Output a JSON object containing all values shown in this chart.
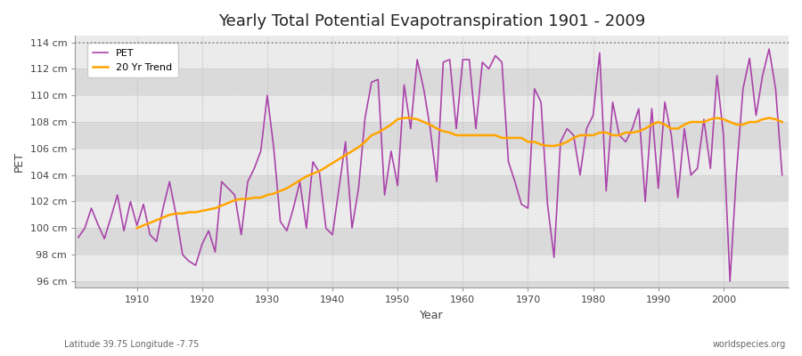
{
  "title": "Yearly Total Potential Evapotranspiration 1901 - 2009",
  "xlabel": "Year",
  "ylabel": "PET",
  "subtitle_left": "Latitude 39.75 Longitude -7.75",
  "subtitle_right": "worldspecies.org",
  "ylim": [
    95.5,
    114.5
  ],
  "xlim": [
    1900.5,
    2010
  ],
  "ytick_labels": [
    "96 cm",
    "98 cm",
    "100 cm",
    "102 cm",
    "104 cm",
    "106 cm",
    "108 cm",
    "110 cm",
    "112 cm",
    "114 cm"
  ],
  "ytick_values": [
    96,
    98,
    100,
    102,
    104,
    106,
    108,
    110,
    112,
    114
  ],
  "xtick_values": [
    1910,
    1920,
    1930,
    1940,
    1950,
    1960,
    1970,
    1980,
    1990,
    2000
  ],
  "pet_color": "#AA44AA",
  "trend_color": "#FFA500",
  "background_color": "#FFFFFF",
  "plot_bg_light": "#EBEBEB",
  "plot_bg_dark": "#DADADA",
  "grid_color": "#FFFFFF",
  "hline_value": 114,
  "pet_years": [
    1901,
    1902,
    1903,
    1904,
    1905,
    1906,
    1907,
    1908,
    1909,
    1910,
    1911,
    1912,
    1913,
    1914,
    1915,
    1916,
    1917,
    1918,
    1919,
    1920,
    1921,
    1922,
    1923,
    1924,
    1925,
    1926,
    1927,
    1928,
    1929,
    1930,
    1931,
    1932,
    1933,
    1934,
    1935,
    1936,
    1937,
    1938,
    1939,
    1940,
    1941,
    1942,
    1943,
    1944,
    1945,
    1946,
    1947,
    1948,
    1949,
    1950,
    1951,
    1952,
    1953,
    1954,
    1955,
    1956,
    1957,
    1958,
    1959,
    1960,
    1961,
    1962,
    1963,
    1964,
    1965,
    1966,
    1967,
    1968,
    1969,
    1970,
    1971,
    1972,
    1973,
    1974,
    1975,
    1976,
    1977,
    1978,
    1979,
    1980,
    1981,
    1982,
    1983,
    1984,
    1985,
    1986,
    1987,
    1988,
    1989,
    1990,
    1991,
    1992,
    1993,
    1994,
    1995,
    1996,
    1997,
    1998,
    1999,
    2000,
    2001,
    2002,
    2003,
    2004,
    2005,
    2006,
    2007,
    2008,
    2009
  ],
  "pet_values": [
    99.3,
    100.0,
    101.5,
    100.3,
    99.2,
    100.8,
    102.5,
    99.8,
    102.0,
    100.2,
    101.8,
    99.5,
    99.0,
    101.5,
    103.5,
    101.0,
    98.0,
    97.5,
    97.2,
    98.8,
    99.8,
    98.2,
    103.5,
    103.0,
    102.5,
    99.5,
    103.5,
    104.5,
    105.8,
    110.0,
    106.0,
    100.5,
    99.8,
    101.5,
    103.5,
    100.0,
    105.0,
    104.2,
    100.0,
    99.5,
    103.0,
    106.5,
    100.0,
    103.0,
    108.3,
    111.0,
    111.2,
    102.5,
    105.8,
    103.2,
    110.8,
    107.5,
    112.7,
    110.5,
    107.5,
    103.5,
    112.5,
    112.7,
    107.5,
    112.7,
    112.7,
    107.5,
    112.5,
    112.0,
    113.0,
    112.5,
    105.0,
    103.5,
    101.8,
    101.5,
    110.5,
    109.5,
    101.8,
    97.8,
    106.5,
    107.5,
    107.0,
    104.0,
    107.5,
    108.5,
    113.2,
    102.8,
    109.5,
    107.0,
    106.5,
    107.5,
    109.0,
    102.0,
    109.0,
    103.0,
    109.5,
    107.0,
    102.3,
    107.5,
    104.0,
    104.5,
    108.2,
    104.5,
    111.5,
    107.0,
    96.0,
    104.2,
    110.5,
    112.8,
    108.5,
    111.5,
    113.5,
    110.5,
    104.0
  ],
  "trend_years": [
    1910,
    1911,
    1912,
    1913,
    1914,
    1915,
    1916,
    1917,
    1918,
    1919,
    1920,
    1921,
    1922,
    1923,
    1924,
    1925,
    1926,
    1927,
    1928,
    1929,
    1930,
    1931,
    1932,
    1933,
    1934,
    1935,
    1936,
    1937,
    1938,
    1939,
    1940,
    1941,
    1942,
    1943,
    1944,
    1945,
    1946,
    1947,
    1948,
    1949,
    1950,
    1951,
    1952,
    1953,
    1954,
    1955,
    1956,
    1957,
    1958,
    1959,
    1960,
    1961,
    1962,
    1963,
    1964,
    1965,
    1966,
    1967,
    1968,
    1969,
    1970,
    1971,
    1972,
    1973,
    1974,
    1975,
    1976,
    1977,
    1978,
    1979,
    1980,
    1981,
    1982,
    1983,
    1984,
    1985,
    1986,
    1987,
    1988,
    1989,
    1990,
    1991,
    1992,
    1993,
    1994,
    1995,
    1996,
    1997,
    1998,
    1999,
    2000,
    2001,
    2002,
    2003,
    2004,
    2005,
    2006,
    2007,
    2008,
    2009
  ],
  "trend_values": [
    100.0,
    100.2,
    100.4,
    100.6,
    100.8,
    101.0,
    101.1,
    101.1,
    101.2,
    101.2,
    101.3,
    101.4,
    101.5,
    101.7,
    101.9,
    102.1,
    102.2,
    102.2,
    102.3,
    102.3,
    102.5,
    102.6,
    102.8,
    103.0,
    103.3,
    103.6,
    103.9,
    104.1,
    104.3,
    104.6,
    104.9,
    105.2,
    105.5,
    105.8,
    106.1,
    106.5,
    107.0,
    107.2,
    107.5,
    107.8,
    108.2,
    108.3,
    108.3,
    108.2,
    108.0,
    107.8,
    107.5,
    107.3,
    107.2,
    107.0,
    107.0,
    107.0,
    107.0,
    107.0,
    107.0,
    107.0,
    106.8,
    106.8,
    106.8,
    106.8,
    106.5,
    106.5,
    106.3,
    106.2,
    106.2,
    106.3,
    106.5,
    106.8,
    107.0,
    107.0,
    107.0,
    107.2,
    107.2,
    107.0,
    107.0,
    107.2,
    107.2,
    107.3,
    107.5,
    107.8,
    108.0,
    107.8,
    107.5,
    107.5,
    107.8,
    108.0,
    108.0,
    108.0,
    108.2,
    108.3,
    108.2,
    108.0,
    107.8,
    107.8,
    108.0,
    108.0,
    108.2,
    108.3,
    108.2,
    108.0
  ]
}
